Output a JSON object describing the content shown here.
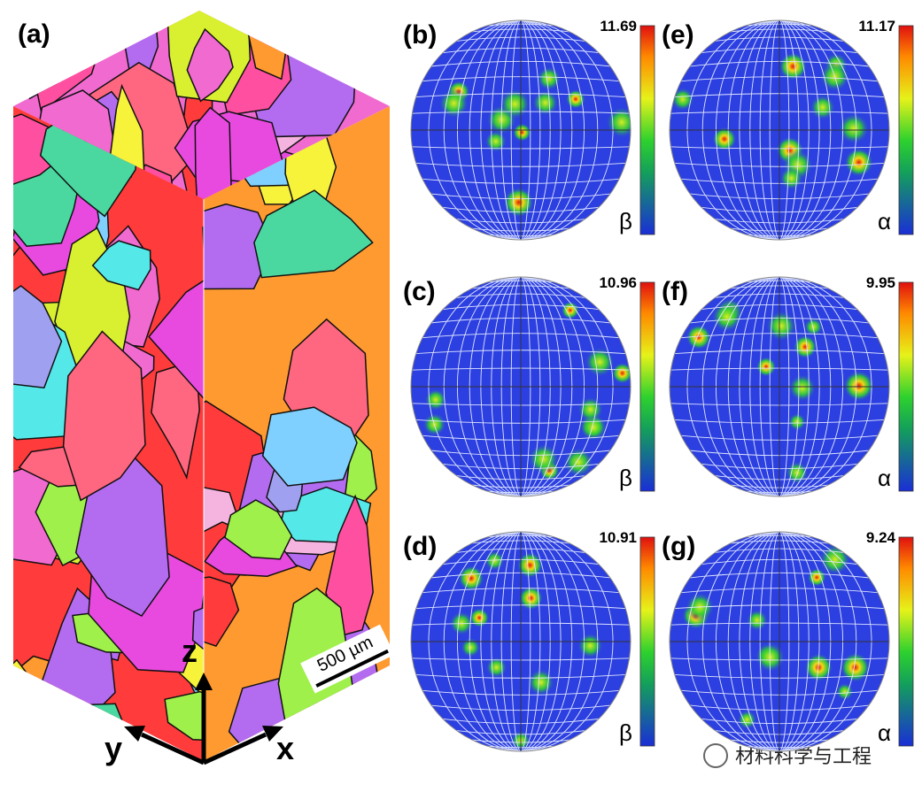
{
  "figure": {
    "block": {
      "label": "(a)",
      "axes": {
        "z": "z",
        "y": "y",
        "x": "x"
      },
      "scale_bar": "500 µm"
    },
    "panels": [
      {
        "label": "(b)",
        "max": "11.69",
        "phase": "β"
      },
      {
        "label": "(e)",
        "max": "11.17",
        "phase": "α"
      },
      {
        "label": "(c)",
        "max": "10.96",
        "phase": "β"
      },
      {
        "label": "(f)",
        "max": "9.95",
        "phase": "α"
      },
      {
        "label": "(d)",
        "max": "10.91",
        "phase": "β"
      },
      {
        "label": "(g)",
        "max": "9.24",
        "phase": "α"
      }
    ],
    "watermark": "材料科学与工程"
  }
}
